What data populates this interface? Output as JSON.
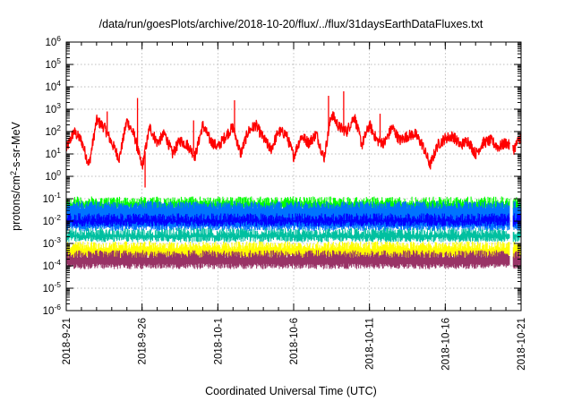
{
  "chart_data": {
    "type": "line",
    "title": "/data/run/goesPlots/archive/2018-10-20/flux/../flux/31daysEarthDataFluxes.txt",
    "xlabel": "Coordinated Universal Time (UTC)",
    "ylabel": {
      "pre": "protons/cm",
      "sup": "2",
      "post": "-s-sr-MeV"
    },
    "yscale": "log",
    "ylim_exponent": [
      -6,
      6
    ],
    "y_ticks": [
      {
        "base": "10",
        "exp": "-6"
      },
      {
        "base": "10",
        "exp": "-5"
      },
      {
        "base": "10",
        "exp": "-4"
      },
      {
        "base": "10",
        "exp": "-3"
      },
      {
        "base": "10",
        "exp": "-2"
      },
      {
        "base": "10",
        "exp": "-1"
      },
      {
        "base": "10",
        "exp": "0"
      },
      {
        "base": "10",
        "exp": "1"
      },
      {
        "base": "10",
        "exp": "2"
      },
      {
        "base": "10",
        "exp": "3"
      },
      {
        "base": "10",
        "exp": "4"
      },
      {
        "base": "10",
        "exp": "5"
      },
      {
        "base": "10",
        "exp": "6"
      }
    ],
    "x_ticks": [
      "2018-9-21",
      "2018-9-26",
      "2018-10-1",
      "2018-10-6",
      "2018-10-11",
      "2018-10-16",
      "2018-10-21"
    ],
    "x_start": "2018-09-21",
    "x_end": "2018-10-21",
    "grid": true,
    "series": [
      {
        "color": "#ff0000",
        "envelope": false,
        "x_days": [
          0,
          0.5,
          1,
          1.5,
          2,
          2.5,
          3,
          3.5,
          4,
          4.5,
          5,
          5.5,
          6,
          6.5,
          7,
          7.5,
          8,
          8.5,
          9,
          9.5,
          10,
          10.5,
          11,
          11.5,
          12,
          12.5,
          13,
          13.5,
          14,
          14.5,
          15,
          15.5,
          16,
          16.5,
          17,
          17.5,
          18,
          18.5,
          19,
          19.5,
          20,
          20.5,
          21,
          21.5,
          22,
          22.5,
          23,
          23.5,
          24,
          24.5,
          25,
          25.5,
          26,
          26.5,
          27,
          27.5,
          28,
          28.5,
          29,
          29.5,
          30
        ],
        "log10_flux": [
          1.2,
          2.0,
          1.6,
          0.5,
          2.5,
          2.2,
          1.5,
          0.8,
          2.5,
          1.8,
          0.4,
          2.2,
          1.5,
          1.9,
          1.0,
          1.6,
          1.4,
          0.9,
          2.3,
          1.6,
          1.3,
          1.8,
          2.2,
          1.0,
          2.0,
          2.3,
          1.7,
          1.2,
          2.0,
          1.9,
          0.9,
          1.8,
          1.5,
          1.9,
          0.8,
          2.8,
          2.2,
          2.0,
          2.7,
          1.4,
          2.3,
          1.6,
          1.5,
          2.2,
          1.6,
          1.8,
          1.9,
          1.4,
          0.5,
          1.4,
          1.7,
          1.8,
          1.4,
          1.6,
          1.0,
          1.5,
          1.6,
          1.3,
          1.5,
          1.2,
          1.8
        ],
        "spikes": [
          {
            "x_day": 2.7,
            "log10_flux": 2.9
          },
          {
            "x_day": 4.7,
            "log10_flux": 3.5
          },
          {
            "x_day": 5.2,
            "log10_flux": -0.5
          },
          {
            "x_day": 8.4,
            "log10_flux": 2.5
          },
          {
            "x_day": 11.1,
            "log10_flux": 3.4
          },
          {
            "x_day": 17.3,
            "log10_flux": 3.6
          },
          {
            "x_day": 18.3,
            "log10_flux": 3.8
          },
          {
            "x_day": 20.7,
            "log10_flux": 2.8
          }
        ]
      },
      {
        "color": "#00ff00",
        "envelope": true,
        "log10_low": -1.6,
        "log10_high": -0.9
      },
      {
        "color": "#0073ff",
        "envelope": true,
        "log10_low": -2.45,
        "log10_high": -1.1
      },
      {
        "color": "#0000ff",
        "envelope": true,
        "log10_low": -2.25,
        "log10_high": -1.65
      },
      {
        "color": "#00c0a0",
        "envelope": true,
        "log10_low": -2.95,
        "log10_high": -2.3
      },
      {
        "color": "#ffff00",
        "envelope": true,
        "log10_low": -3.75,
        "log10_high": -2.9
      },
      {
        "color": "#993366",
        "envelope": true,
        "log10_low": -4.15,
        "log10_high": -3.3
      }
    ],
    "gap_x_day": 29.35
  }
}
